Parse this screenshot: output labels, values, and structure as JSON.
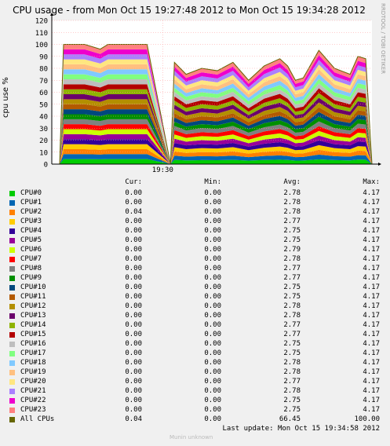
{
  "title": "CPU usage - from Mon Oct 15 19:27:48 2012 to Mon Oct 15 19:34:28 2012",
  "side_text": "RRDTOOL / TOBI OETIKER",
  "footer": "Last update: Mon Oct 15 19:34:58 2012",
  "munin": "Munin unknown",
  "legend_headers": {
    "cur": "Cur:",
    "min": "Min:",
    "avg": "Avg:",
    "max": "Max:"
  },
  "legend": [
    {
      "name": "CPU#0",
      "color": "#00cc00",
      "cur": "0.00",
      "min": "0.00",
      "avg": "2.78",
      "max": "4.17"
    },
    {
      "name": "CPU#1",
      "color": "#0066b3",
      "cur": "0.00",
      "min": "0.00",
      "avg": "2.78",
      "max": "4.17"
    },
    {
      "name": "CPU#2",
      "color": "#ff8000",
      "cur": "0.04",
      "min": "0.00",
      "avg": "2.78",
      "max": "4.17"
    },
    {
      "name": "CPU#3",
      "color": "#ffcc00",
      "cur": "0.00",
      "min": "0.00",
      "avg": "2.77",
      "max": "4.17"
    },
    {
      "name": "CPU#4",
      "color": "#330099",
      "cur": "0.00",
      "min": "0.00",
      "avg": "2.75",
      "max": "4.17"
    },
    {
      "name": "CPU#5",
      "color": "#990099",
      "cur": "0.00",
      "min": "0.00",
      "avg": "2.75",
      "max": "4.17"
    },
    {
      "name": "CPU#6",
      "color": "#ccff00",
      "cur": "0.00",
      "min": "0.00",
      "avg": "2.79",
      "max": "4.17"
    },
    {
      "name": "CPU#7",
      "color": "#ff0000",
      "cur": "0.00",
      "min": "0.00",
      "avg": "2.78",
      "max": "4.17"
    },
    {
      "name": "CPU#8",
      "color": "#808080",
      "cur": "0.00",
      "min": "0.00",
      "avg": "2.77",
      "max": "4.17"
    },
    {
      "name": "CPU#9",
      "color": "#008f00",
      "cur": "0.00",
      "min": "0.00",
      "avg": "2.77",
      "max": "4.17"
    },
    {
      "name": "CPU#10",
      "color": "#00487d",
      "cur": "0.00",
      "min": "0.00",
      "avg": "2.75",
      "max": "4.17"
    },
    {
      "name": "CPU#11",
      "color": "#b35a00",
      "cur": "0.00",
      "min": "0.00",
      "avg": "2.75",
      "max": "4.17"
    },
    {
      "name": "CPU#12",
      "color": "#b38f00",
      "cur": "0.00",
      "min": "0.00",
      "avg": "2.78",
      "max": "4.17"
    },
    {
      "name": "CPU#13",
      "color": "#6b006b",
      "cur": "0.00",
      "min": "0.00",
      "avg": "2.78",
      "max": "4.17"
    },
    {
      "name": "CPU#14",
      "color": "#8fb300",
      "cur": "0.00",
      "min": "0.00",
      "avg": "2.77",
      "max": "4.17"
    },
    {
      "name": "CPU#15",
      "color": "#b30000",
      "cur": "0.00",
      "min": "0.00",
      "avg": "2.77",
      "max": "4.17"
    },
    {
      "name": "CPU#16",
      "color": "#bebebe",
      "cur": "0.00",
      "min": "0.00",
      "avg": "2.75",
      "max": "4.17"
    },
    {
      "name": "CPU#17",
      "color": "#80ff80",
      "cur": "0.00",
      "min": "0.00",
      "avg": "2.75",
      "max": "4.17"
    },
    {
      "name": "CPU#18",
      "color": "#80c9ff",
      "cur": "0.00",
      "min": "0.00",
      "avg": "2.78",
      "max": "4.17"
    },
    {
      "name": "CPU#19",
      "color": "#ffc080",
      "cur": "0.00",
      "min": "0.00",
      "avg": "2.78",
      "max": "4.17"
    },
    {
      "name": "CPU#20",
      "color": "#ffe680",
      "cur": "0.00",
      "min": "0.00",
      "avg": "2.77",
      "max": "4.17"
    },
    {
      "name": "CPU#21",
      "color": "#aa80ff",
      "cur": "0.00",
      "min": "0.00",
      "avg": "2.78",
      "max": "4.17"
    },
    {
      "name": "CPU#22",
      "color": "#ee00cc",
      "cur": "0.00",
      "min": "0.00",
      "avg": "2.75",
      "max": "4.17"
    },
    {
      "name": "CPU#23",
      "color": "#ff8080",
      "cur": "0.00",
      "min": "0.00",
      "avg": "2.75",
      "max": "4.17"
    },
    {
      "name": "All CPUs",
      "color": "#666600",
      "cur": "0.04",
      "min": "0.00",
      "avg": "66.45",
      "max": "100.00"
    }
  ],
  "chart_data": {
    "type": "area",
    "ylabel": "cpu use %",
    "ylim": [
      0,
      120
    ],
    "yticks": [
      "0",
      "10",
      "20",
      "30",
      "40",
      "50",
      "60",
      "70",
      "80",
      "90",
      "100",
      "110",
      "120"
    ],
    "xticks": [
      "19:30"
    ],
    "grid": true,
    "stacked": true,
    "x": [
      "19:27:48",
      "19:27:53",
      "19:28:00",
      "19:28:20",
      "19:28:40",
      "19:28:50",
      "19:28:55",
      "19:29:00",
      "19:29:20",
      "19:29:40",
      "19:30:10",
      "19:30:15",
      "19:30:30",
      "19:30:50",
      "19:31:10",
      "19:31:30",
      "19:31:50",
      "19:32:10",
      "19:32:30",
      "19:32:40",
      "19:32:50",
      "19:33:00",
      "19:33:20",
      "19:33:40",
      "19:34:00",
      "19:34:10",
      "19:34:20",
      "19:34:28"
    ],
    "all_cpus": [
      0,
      100,
      100,
      100,
      96,
      100,
      100,
      100,
      100,
      100,
      0,
      85,
      75,
      80,
      78,
      85,
      70,
      82,
      88,
      82,
      70,
      72,
      95,
      80,
      75,
      90,
      88,
      0
    ]
  }
}
